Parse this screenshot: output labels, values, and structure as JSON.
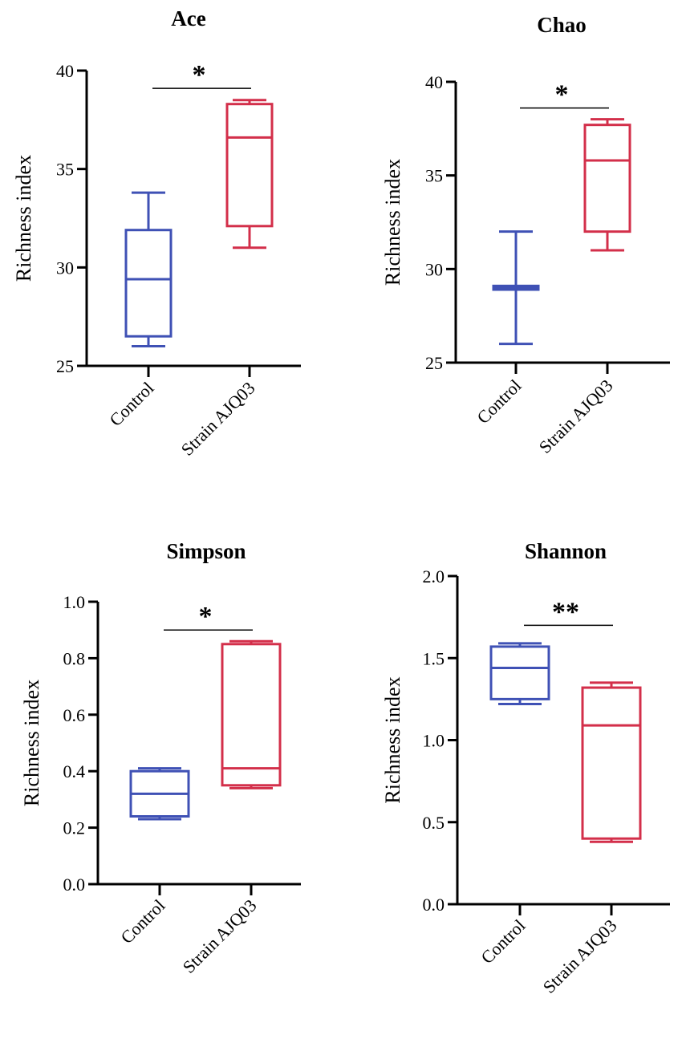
{
  "chart_data": [
    {
      "type": "box",
      "title": "Ace",
      "ylabel": "Richness index",
      "xlabel": "",
      "categories": [
        "Control",
        "Strain AJQ03"
      ],
      "ylim": [
        25,
        40
      ],
      "yticks": [
        25,
        30,
        35,
        40
      ],
      "tick_labels": [
        "25",
        "30",
        "35",
        "40"
      ],
      "boxes": [
        {
          "name": "Control",
          "min": 26.0,
          "q1": 26.5,
          "median": 29.4,
          "q3": 31.9,
          "max": 33.8,
          "color": "#3f51b5"
        },
        {
          "name": "Strain AJQ03",
          "min": 31.0,
          "q1": 32.1,
          "median": 36.6,
          "q3": 38.3,
          "max": 38.5,
          "color": "#d32f4a"
        }
      ],
      "significance": {
        "label": "*",
        "y": 39.1
      }
    },
    {
      "type": "box",
      "title": "Chao",
      "ylabel": "Richness index",
      "xlabel": "",
      "categories": [
        "Control",
        "Strain AJQ03"
      ],
      "ylim": [
        25,
        40
      ],
      "yticks": [
        25,
        30,
        35,
        40
      ],
      "tick_labels": [
        "25",
        "30",
        "35",
        "40"
      ],
      "boxes": [
        {
          "name": "Control",
          "min": 26.0,
          "q1": 28.9,
          "median": 29.0,
          "q3": 29.1,
          "max": 32.0,
          "color": "#3f51b5"
        },
        {
          "name": "Strain AJQ03",
          "min": 31.0,
          "q1": 32.0,
          "median": 35.8,
          "q3": 37.7,
          "max": 38.0,
          "color": "#d32f4a"
        }
      ],
      "significance": {
        "label": "*",
        "y": 38.6
      }
    },
    {
      "type": "box",
      "title": "Simpson",
      "ylabel": "Richness index",
      "xlabel": "",
      "categories": [
        "Control",
        "Strain AJQ03"
      ],
      "ylim": [
        0.0,
        1.0
      ],
      "yticks": [
        0.0,
        0.2,
        0.4,
        0.6,
        0.8,
        1.0
      ],
      "tick_labels": [
        "0.0",
        "0.2",
        "0.4",
        "0.6",
        "0.8",
        "1.0"
      ],
      "boxes": [
        {
          "name": "Control",
          "min": 0.23,
          "q1": 0.24,
          "median": 0.32,
          "q3": 0.4,
          "max": 0.41,
          "color": "#3f51b5"
        },
        {
          "name": "Strain AJQ03",
          "min": 0.34,
          "q1": 0.35,
          "median": 0.41,
          "q3": 0.85,
          "max": 0.86,
          "color": "#d32f4a"
        }
      ],
      "significance": {
        "label": "*",
        "y": 0.9
      }
    },
    {
      "type": "box",
      "title": "Shannon",
      "ylabel": "Richness index",
      "xlabel": "",
      "categories": [
        "Control",
        "Strain AJQ03"
      ],
      "ylim": [
        0.0,
        2.0
      ],
      "yticks": [
        0.0,
        0.5,
        1.0,
        1.5,
        2.0
      ],
      "tick_labels": [
        "0.0",
        "0.5",
        "1.0",
        "1.5",
        "2.0"
      ],
      "boxes": [
        {
          "name": "Control",
          "min": 1.22,
          "q1": 1.25,
          "median": 1.44,
          "q3": 1.57,
          "max": 1.59,
          "color": "#3f51b5"
        },
        {
          "name": "Strain AJQ03",
          "min": 0.38,
          "q1": 0.4,
          "median": 1.09,
          "q3": 1.32,
          "max": 1.35,
          "color": "#d32f4a"
        }
      ],
      "significance": {
        "label": "**",
        "y": 1.7
      }
    }
  ]
}
